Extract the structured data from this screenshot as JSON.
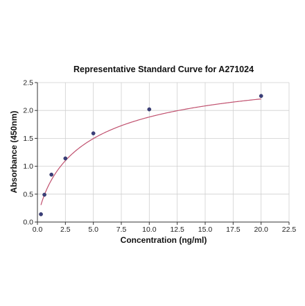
{
  "chart_data": {
    "type": "scatter",
    "title": "Representative Standard Curve for A271024",
    "xlabel": "Concentration (ng/ml)",
    "ylabel": "Absorbance (450nm)",
    "xlim": [
      0,
      22.5
    ],
    "ylim": [
      0,
      2.5
    ],
    "x_ticks": [
      "0.0",
      "2.5",
      "5.0",
      "7.5",
      "10.0",
      "12.5",
      "15.0",
      "17.5",
      "20.0",
      "22.5"
    ],
    "y_ticks": [
      "0.0",
      "0.5",
      "1.0",
      "1.5",
      "2.0",
      "2.5"
    ],
    "grid": true,
    "series": [
      {
        "x": [
          0.313,
          0.625,
          1.25,
          2.5,
          5.0,
          10.0,
          20.0
        ],
        "y": [
          0.14,
          0.49,
          0.85,
          1.14,
          1.59,
          2.02,
          2.26
        ]
      }
    ],
    "fit_curve": {
      "model": "4PL",
      "a": 0.02,
      "b": 0.82,
      "c": 4.5,
      "d": 2.85
    },
    "colors": {
      "points": "#3b3f7a",
      "curve": "#c0506e",
      "grid": "#cfcfcf"
    }
  }
}
